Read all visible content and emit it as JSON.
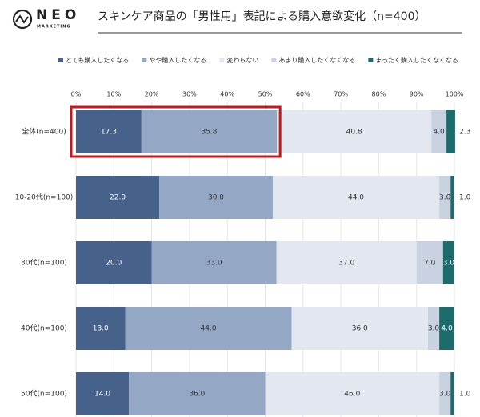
{
  "header": {
    "logo": "NEO",
    "logo_sub": "MARKETING"
  },
  "chart_data": {
    "type": "stacked-bar-horizontal",
    "title": "スキンケア商品の「男性用」表記による購入意欲変化（n=400）",
    "categories": [
      "全体(n=400)",
      "10-20代(n=100)",
      "30代(n=100)",
      "40代(n=100)",
      "50代(n=100)"
    ],
    "series": [
      {
        "name": "とても購入したくなる",
        "color": "#46618a",
        "values": [
          17.3,
          22,
          20,
          13,
          14
        ],
        "value_labels": [
          "17.3",
          "22.0",
          "20.0",
          "13.0",
          "14.0"
        ]
      },
      {
        "name": "やや購入したくなる",
        "color": "#94a8c6",
        "values": [
          35.8,
          30,
          33,
          44,
          36
        ],
        "value_labels": [
          "35.8",
          "30.0",
          "33.0",
          "44.0",
          "36.0"
        ]
      },
      {
        "name": "変わらない",
        "color": "#e3e8f0",
        "values": [
          40.8,
          44,
          37,
          36,
          46
        ],
        "value_labels": [
          "40.8",
          "44.0",
          "37.0",
          "36.0",
          "46.0"
        ]
      },
      {
        "name": "あまり購入したくなくなる",
        "color": "#c8d2e0",
        "values": [
          4,
          3,
          7,
          3,
          3
        ],
        "value_labels": [
          "4.0",
          "3.0",
          "7.0",
          "3.0",
          "3.0"
        ]
      },
      {
        "name": "まったく購入したくなくなる",
        "color": "#1e6b6c",
        "values": [
          2.3,
          1,
          3,
          4,
          1
        ],
        "value_labels": [
          "2.3",
          "1.0",
          "3.0",
          "4.0",
          "1.0"
        ]
      }
    ],
    "xlim": [
      0,
      100
    ],
    "xticks": [
      {
        "value": 0,
        "label": "0%"
      },
      {
        "value": 10,
        "label": "10%"
      },
      {
        "value": 20,
        "label": "20%"
      },
      {
        "value": 30,
        "label": "30%"
      },
      {
        "value": 40,
        "label": "40%"
      },
      {
        "value": 50,
        "label": "50%"
      },
      {
        "value": 60,
        "label": "60%"
      },
      {
        "value": 70,
        "label": "70%"
      },
      {
        "value": 80,
        "label": "80%"
      },
      {
        "value": 90,
        "label": "90%"
      },
      {
        "value": 100,
        "label": "100%"
      }
    ],
    "grid": true
  }
}
